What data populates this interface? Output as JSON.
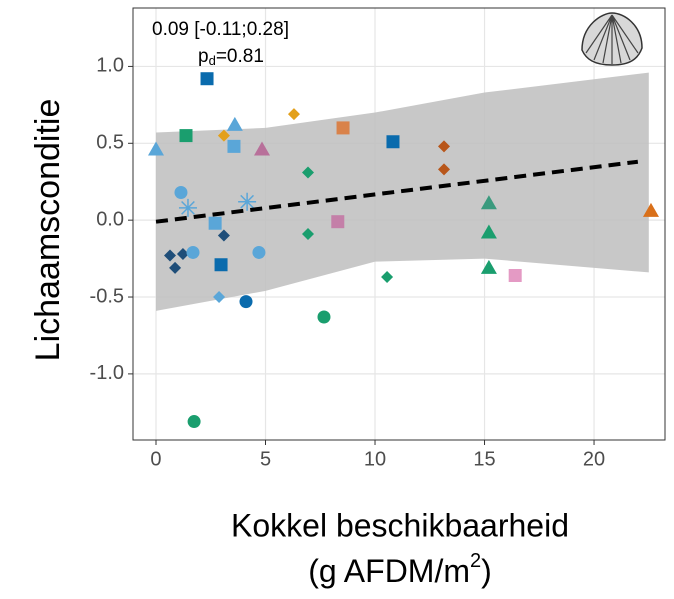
{
  "chart_data": {
    "type": "scatter",
    "annotation_line1": "0.09 [-0.11;0.28]",
    "annotation_line2": {
      "main": "p",
      "sub": "d",
      "rest": "=0.81"
    },
    "y_label": "Lichaamsconditie",
    "x_label_line1": "Kokkel beschikbaarheid",
    "x_label_line2": {
      "main": "(g AFDM/m",
      "sup": "2",
      "rest": ")"
    },
    "xlim": [
      -1.05,
      23.24
    ],
    "ylim": [
      -1.43,
      1.38
    ],
    "xticks": [
      0,
      5,
      10,
      15,
      20
    ],
    "yticks": [
      {
        "value": -1,
        "label": "-1.0"
      },
      {
        "value": -0.5,
        "label": "-0.5"
      },
      {
        "value": 0,
        "label": "0.0"
      },
      {
        "value": 0.5,
        "label": "0.5"
      },
      {
        "value": 1,
        "label": "1.0"
      }
    ],
    "grid": true,
    "band": {
      "color": "#bebebe",
      "x": [
        0,
        5,
        10,
        15,
        22.5
      ],
      "upper": [
        0.57,
        0.6,
        0.7,
        0.83,
        0.96
      ],
      "lower": [
        -0.59,
        -0.46,
        -0.27,
        -0.25,
        -0.34
      ]
    },
    "trend": {
      "color": "#000000",
      "x": [
        0,
        22
      ],
      "y": [
        -0.01,
        0.38
      ]
    },
    "x": [
      0,
      2.33,
      1.37,
      3.1,
      3.6,
      3.56,
      4.84,
      6.3,
      8.54,
      10.82,
      13.15,
      13.15,
      6.94,
      1.14,
      1.46,
      4.16,
      2.7,
      3.1,
      8.3,
      6.94,
      15.2,
      15.2,
      15.2,
      22.6,
      16.4,
      10.55,
      0.64,
      0.87,
      1.23,
      1.69,
      2.97,
      4.7,
      2.88,
      4.11,
      7.67,
      1.74
    ],
    "y": [
      0.46,
      0.92,
      0.55,
      0.55,
      0.62,
      0.48,
      0.46,
      0.69,
      0.6,
      0.51,
      0.48,
      0.33,
      0.31,
      0.18,
      0.08,
      0.12,
      -0.02,
      -0.1,
      -0.01,
      -0.09,
      0.11,
      -0.08,
      -0.31,
      0.06,
      -0.36,
      -0.37,
      -0.23,
      -0.31,
      -0.22,
      -0.21,
      -0.29,
      -0.21,
      -0.5,
      -0.53,
      -0.63,
      -1.31
    ],
    "shapes": [
      "triangle",
      "square",
      "square",
      "diamond",
      "triangle",
      "square",
      "triangle",
      "diamond",
      "square",
      "square",
      "diamond",
      "diamond",
      "diamond",
      "circle",
      "asterisk",
      "asterisk",
      "square",
      "diamond",
      "square",
      "diamond",
      "triangle",
      "triangle",
      "triangle",
      "triangle",
      "square",
      "diamond",
      "diamond",
      "diamond",
      "diamond",
      "circle",
      "square",
      "circle",
      "diamond",
      "circle",
      "circle",
      "circle"
    ],
    "colors": [
      "#5aa6d8",
      "#0a6bad",
      "#1a9e6e",
      "#e3a01a",
      "#5aa6d8",
      "#5aa6d8",
      "#b8709a",
      "#e3a01a",
      "#d9824a",
      "#0a6bad",
      "#b8561a",
      "#b8561a",
      "#1a9e6e",
      "#5aa6d8",
      "#5aa6d8",
      "#5aa6d8",
      "#5aa6d8",
      "#1f4e79",
      "#c47fa8",
      "#1a9e6e",
      "#3a9a7e",
      "#1a9e6e",
      "#1a9e6e",
      "#d9701a",
      "#e49ac4",
      "#1a9e6e",
      "#1f4e79",
      "#1f4e79",
      "#1f4e79",
      "#5aa6d8",
      "#0a6bad",
      "#5aa6d8",
      "#5aa6d8",
      "#0a6bad",
      "#1a9e6e",
      "#1a9e6e"
    ]
  }
}
